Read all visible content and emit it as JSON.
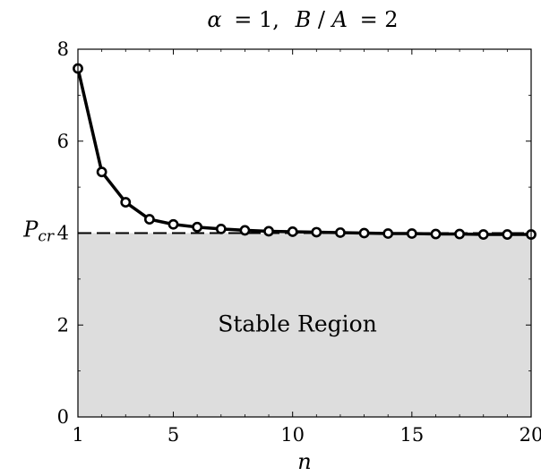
{
  "chart_data": {
    "type": "line",
    "title": {
      "alpha": "α",
      "eq1": "= 1,",
      "b": "B",
      "slash": "/",
      "a": "A",
      "eq2": "= 2"
    },
    "xlabel": "n",
    "ylabel": "",
    "xlim": [
      1,
      20
    ],
    "ylim": [
      0,
      8
    ],
    "x_ticks": [
      1,
      5,
      10,
      15,
      20
    ],
    "y_ticks": [
      0,
      2,
      4,
      6,
      8
    ],
    "grid": false,
    "series": [
      {
        "x": [
          1,
          2,
          3,
          4,
          5,
          6,
          7,
          8,
          9,
          10,
          11,
          12,
          13,
          14,
          15,
          16,
          17,
          18,
          19,
          20
        ],
        "values": [
          7.58,
          5.33,
          4.67,
          4.3,
          4.19,
          4.13,
          4.09,
          4.06,
          4.04,
          4.03,
          4.02,
          4.01,
          4.0,
          3.99,
          3.99,
          3.98,
          3.98,
          3.97,
          3.97,
          3.97
        ],
        "color": "#000000",
        "marker": "circle"
      }
    ],
    "reference_line": {
      "y": 4,
      "label_main": "P",
      "label_sub": "cr",
      "style": "dashed"
    },
    "shaded_region": {
      "y_from": 0,
      "y_to": 4,
      "label": "Stable Region",
      "color": "#dddddd"
    }
  }
}
